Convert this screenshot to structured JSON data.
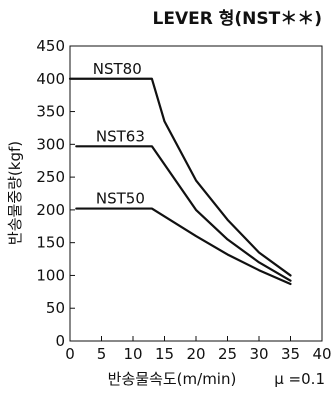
{
  "chart_data": {
    "type": "line",
    "title": "LEVER 형(NST＊＊)",
    "xlabel": "반송물속도(m/min)",
    "ylabel": "반송물중량(kgf)",
    "note": "μ =0.1",
    "xlim": [
      0,
      40
    ],
    "ylim": [
      0,
      450
    ],
    "x_ticks": [
      "0",
      "5",
      "10",
      "15",
      "20",
      "25",
      "30",
      "35",
      "40"
    ],
    "y_ticks": [
      "0",
      "50",
      "100",
      "150",
      "200",
      "250",
      "300",
      "350",
      "400",
      "450"
    ],
    "grid": false,
    "line_color": "#111111",
    "series": [
      {
        "name": "NST80",
        "points": [
          [
            0,
            400
          ],
          [
            13,
            400
          ],
          [
            15,
            335
          ],
          [
            20,
            245
          ],
          [
            25,
            185
          ],
          [
            30,
            135
          ],
          [
            35,
            100
          ]
        ]
      },
      {
        "name": "NST63",
        "points": [
          [
            1,
            297
          ],
          [
            13,
            297
          ],
          [
            20,
            200
          ],
          [
            25,
            155
          ],
          [
            30,
            120
          ],
          [
            35,
            92
          ]
        ]
      },
      {
        "name": "NST50",
        "points": [
          [
            1,
            202
          ],
          [
            13,
            202
          ],
          [
            20,
            160
          ],
          [
            25,
            132
          ],
          [
            30,
            108
          ],
          [
            35,
            87
          ]
        ]
      }
    ]
  }
}
